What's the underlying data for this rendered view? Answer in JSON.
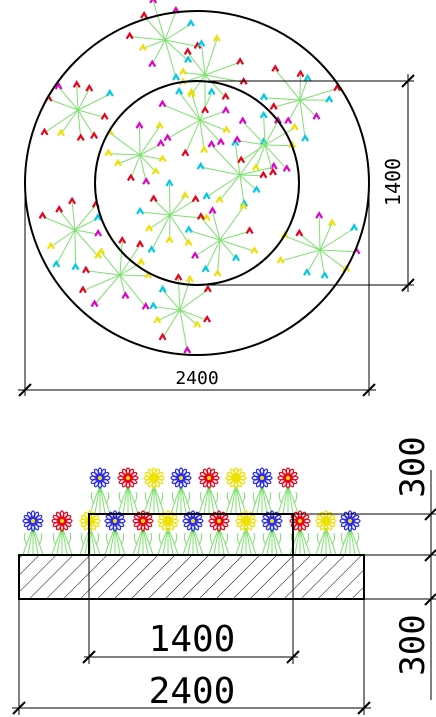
{
  "plan": {
    "outer_diameter_label": "2400",
    "inner_diameter_label": "1400"
  },
  "elevation": {
    "base_width_label": "2400",
    "inner_width_label": "1400",
    "upper_height_label": "300",
    "lower_height_label": "300"
  },
  "colors": {
    "line": "#000000",
    "flower_red": "#e8001c",
    "flower_blue": "#2a2ae8",
    "flower_yellow": "#f0e000",
    "flower_cyan": "#00c8e8",
    "flower_magenta": "#e000c8",
    "stem_green": "#7ee070"
  }
}
